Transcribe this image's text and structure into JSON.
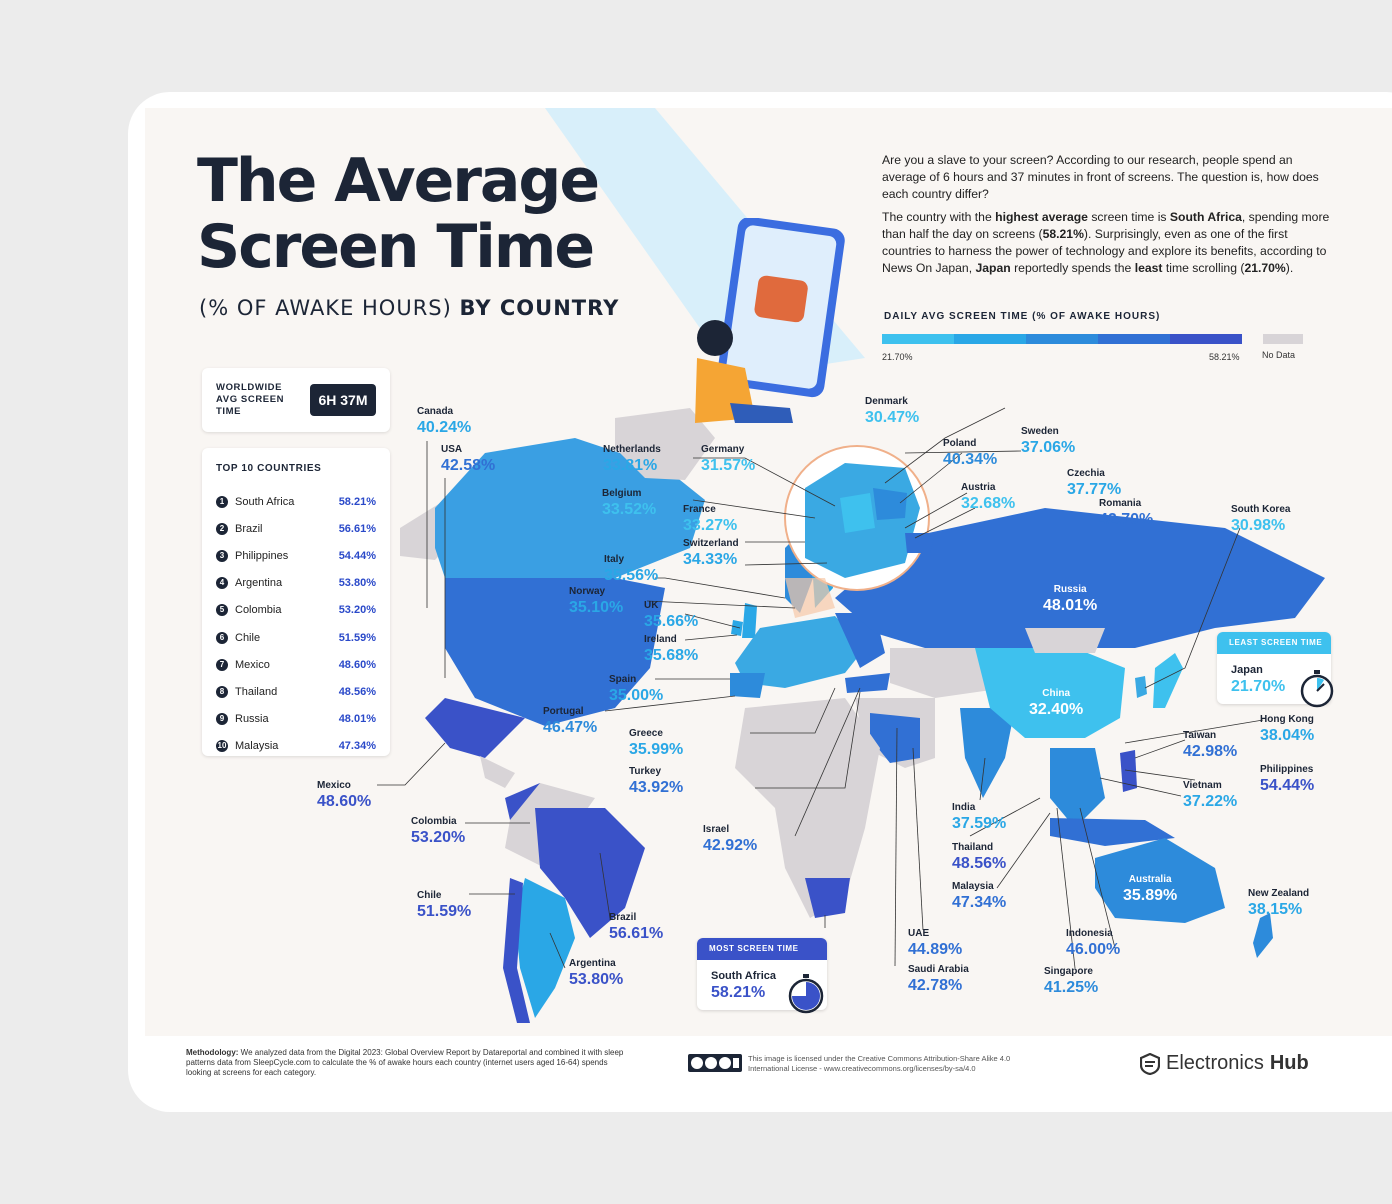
{
  "title_line1": "The Average",
  "title_line2": "Screen Time",
  "subtitle_regular": "(% OF AWAKE HOURS)",
  "subtitle_bold": "BY COUNTRY",
  "intro": {
    "p1": "Are you a slave to your screen? According to our research, people spend an average of 6 hours and 37 minutes in front of screens. The question is, how does each country differ?",
    "p2_a": "The country with the ",
    "p2_b": "highest average",
    "p2_c": " screen time is ",
    "p2_d": "South Africa",
    "p2_e": ", spending more than half the day on screens (",
    "p2_f": "58.21%",
    "p2_g": "). Surprisingly, even as one of the first countries to harness the power of technology and explore its benefits, according to News On Japan, ",
    "p2_h": "Japan",
    "p2_i": " reportedly spends the ",
    "p2_j": "least",
    "p2_k": " time scrolling (",
    "p2_l": "21.70%",
    "p2_m": ")."
  },
  "legend": {
    "title": "DAILY AVG SCREEN TIME (% OF AWAKE HOURS)",
    "min": "21.70%",
    "max": "58.21%",
    "no_data": "No Data",
    "colors": [
      "#3ec1ee",
      "#2aa7e6",
      "#2d8bdb",
      "#3170d4",
      "#3a52c8"
    ],
    "no_data_color": "#d8d4d7"
  },
  "worldwide": {
    "label": "WORLDWIDE AVG SCREEN TIME",
    "value": "6H 37M"
  },
  "top10": {
    "title": "TOP 10 COUNTRIES",
    "items": [
      {
        "rank": "1",
        "name": "South Africa",
        "value": "58.21%"
      },
      {
        "rank": "2",
        "name": "Brazil",
        "value": "56.61%"
      },
      {
        "rank": "3",
        "name": "Philippines",
        "value": "54.44%"
      },
      {
        "rank": "4",
        "name": "Argentina",
        "value": "53.80%"
      },
      {
        "rank": "5",
        "name": "Colombia",
        "value": "53.20%"
      },
      {
        "rank": "6",
        "name": "Chile",
        "value": "51.59%"
      },
      {
        "rank": "7",
        "name": "Mexico",
        "value": "48.60%"
      },
      {
        "rank": "8",
        "name": "Thailand",
        "value": "48.56%"
      },
      {
        "rank": "9",
        "name": "Russia",
        "value": "48.01%"
      },
      {
        "rank": "10",
        "name": "Malaysia",
        "value": "47.34%"
      }
    ]
  },
  "countries": {
    "canada": {
      "name": "Canada",
      "value": "40.24%"
    },
    "usa": {
      "name": "USA",
      "value": "42.58%"
    },
    "mexico": {
      "name": "Mexico",
      "value": "48.60%"
    },
    "colombia": {
      "name": "Colombia",
      "value": "53.20%"
    },
    "chile": {
      "name": "Chile",
      "value": "51.59%"
    },
    "brazil": {
      "name": "Brazil",
      "value": "56.61%"
    },
    "argentina": {
      "name": "Argentina",
      "value": "53.80%"
    },
    "netherlands": {
      "name": "Netherlands",
      "value": "33.81%"
    },
    "germany": {
      "name": "Germany",
      "value": "31.57%"
    },
    "denmark": {
      "name": "Denmark",
      "value": "30.47%"
    },
    "sweden": {
      "name": "Sweden",
      "value": "37.06%"
    },
    "poland": {
      "name": "Poland",
      "value": "40.34%"
    },
    "czechia": {
      "name": "Czechia",
      "value": "37.77%"
    },
    "austria": {
      "name": "Austria",
      "value": "32.68%"
    },
    "romania": {
      "name": "Romania",
      "value": "42.70%"
    },
    "belgium": {
      "name": "Belgium",
      "value": "33.52%"
    },
    "france": {
      "name": "France",
      "value": "33.27%"
    },
    "switzerland": {
      "name": "Switzerland",
      "value": "34.33%"
    },
    "italy": {
      "name": "Italy",
      "value": "35.56%"
    },
    "norway": {
      "name": "Norway",
      "value": "35.10%"
    },
    "uk": {
      "name": "UK",
      "value": "35.66%"
    },
    "ireland": {
      "name": "Ireland",
      "value": "35.68%"
    },
    "spain": {
      "name": "Spain",
      "value": "35.00%"
    },
    "portugal": {
      "name": "Portugal",
      "value": "46.47%"
    },
    "greece": {
      "name": "Greece",
      "value": "35.99%"
    },
    "turkey": {
      "name": "Turkey",
      "value": "43.92%"
    },
    "israel": {
      "name": "Israel",
      "value": "42.92%"
    },
    "russia": {
      "name": "Russia",
      "value": "48.01%"
    },
    "south_korea": {
      "name": "South Korea",
      "value": "30.98%"
    },
    "japan": {
      "name": "Japan",
      "value": "21.70%"
    },
    "china": {
      "name": "China",
      "value": "32.40%"
    },
    "hong_kong": {
      "name": "Hong Kong",
      "value": "38.04%"
    },
    "taiwan": {
      "name": "Taiwan",
      "value": "42.98%"
    },
    "philippines": {
      "name": "Philippines",
      "value": "54.44%"
    },
    "vietnam": {
      "name": "Vietnam",
      "value": "37.22%"
    },
    "india": {
      "name": "India",
      "value": "37.59%"
    },
    "thailand": {
      "name": "Thailand",
      "value": "48.56%"
    },
    "malaysia": {
      "name": "Malaysia",
      "value": "47.34%"
    },
    "australia": {
      "name": "Australia",
      "value": "35.89%"
    },
    "new_zealand": {
      "name": "New Zealand",
      "value": "38.15%"
    },
    "indonesia": {
      "name": "Indonesia",
      "value": "46.00%"
    },
    "singapore": {
      "name": "Singapore",
      "value": "41.25%"
    },
    "uae": {
      "name": "UAE",
      "value": "44.89%"
    },
    "saudi_arabia": {
      "name": "Saudi Arabia",
      "value": "42.78%"
    },
    "south_africa": {
      "name": "South Africa",
      "value": "58.21%"
    }
  },
  "least_callout": {
    "head": "LEAST SCREEN TIME",
    "name": "Japan",
    "value": "21.70%",
    "color": "#3ec1ee"
  },
  "most_callout": {
    "head": "MOST SCREEN TIME",
    "name": "South Africa",
    "value": "58.21%",
    "color": "#3a52c8"
  },
  "footer": {
    "method_bold": "Methodology:",
    "method_text": " We analyzed data from the Digital 2023: Global Overview Report by Datareportal and combined it with sleep patterns data from SleepCycle.com to calculate the % of awake hours each country (internet users aged 16-64) spends looking at screens for each category.",
    "license": "This image is licensed under the Creative Commons Attribution-Share Alike 4.0 International License - www.creativecommons.org/licenses/by-sa/4.0",
    "license_icon": "cc-by-sa-icon",
    "brand_a": "Electronics",
    "brand_b": "Hub"
  }
}
